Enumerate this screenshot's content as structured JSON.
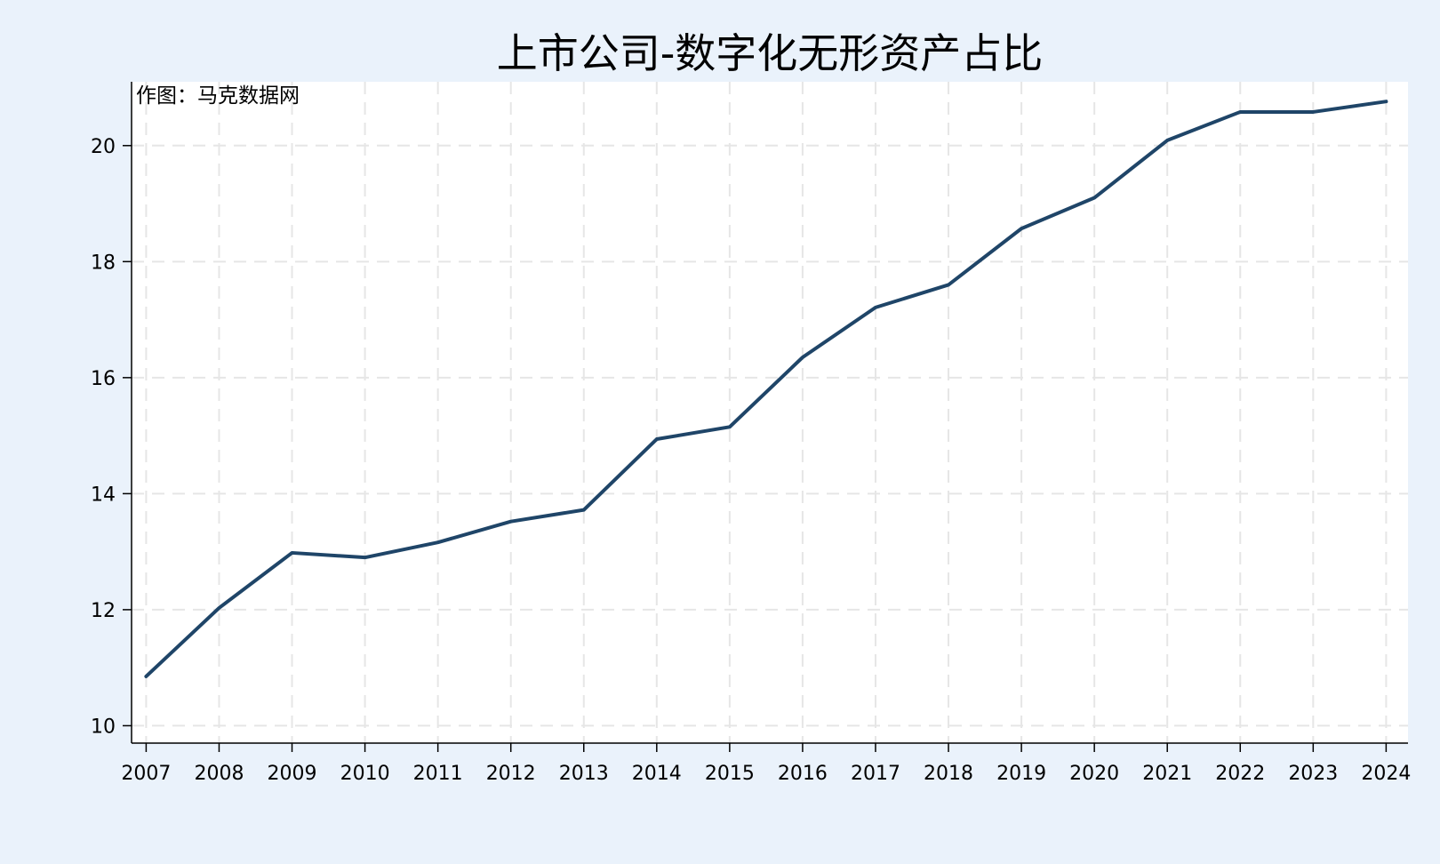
{
  "chart_data": {
    "type": "line",
    "title": "上市公司-数字化无形资产占比",
    "annotation": "作图：马克数据网",
    "xlabel": "",
    "ylabel": "",
    "x": [
      2007,
      2008,
      2009,
      2010,
      2011,
      2012,
      2013,
      2014,
      2015,
      2016,
      2017,
      2018,
      2019,
      2020,
      2021,
      2022,
      2023,
      2024
    ],
    "series": [
      {
        "values": [
          10.85,
          12.03,
          12.98,
          12.9,
          13.16,
          13.52,
          13.72,
          14.94,
          15.15,
          16.35,
          17.21,
          17.6,
          18.57,
          19.1,
          20.09,
          20.58,
          20.58,
          20.76
        ],
        "color": "#1f4568"
      }
    ],
    "yticks": [
      10,
      12,
      14,
      16,
      18,
      20
    ],
    "xticks": [
      2007,
      2008,
      2009,
      2010,
      2011,
      2012,
      2013,
      2014,
      2015,
      2016,
      2017,
      2018,
      2019,
      2020,
      2021,
      2022,
      2023,
      2024
    ],
    "ylim": [
      9.7,
      21.1
    ],
    "xlim": [
      2006.8,
      2024.3
    ],
    "grid": true,
    "colors": {
      "figure_background": "#eaf2fb",
      "plot_background": "#ffffff",
      "grid": "#e6e6e6",
      "line": "#1f4568"
    }
  }
}
